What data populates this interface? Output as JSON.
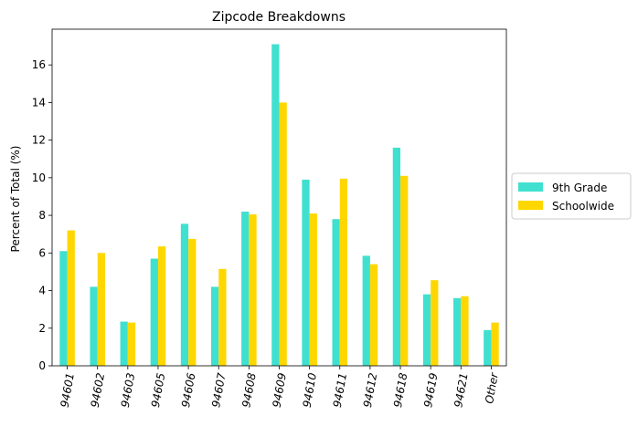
{
  "chart_data": {
    "type": "bar",
    "title": "Zipcode Breakdowns",
    "xlabel": "",
    "ylabel": "Percent of Total (%)",
    "ylim": [
      0,
      17.9
    ],
    "yticks": [
      0,
      2,
      4,
      6,
      8,
      10,
      12,
      14,
      16
    ],
    "categories": [
      "94601",
      "94602",
      "94603",
      "94605",
      "94606",
      "94607",
      "94608",
      "94609",
      "94610",
      "94611",
      "94612",
      "94618",
      "94619",
      "94621",
      "Other"
    ],
    "series": [
      {
        "name": "9th Grade",
        "color": "#40E0D0",
        "values": [
          6.1,
          4.2,
          2.35,
          5.7,
          7.55,
          4.2,
          8.2,
          17.1,
          9.9,
          7.8,
          5.85,
          11.6,
          3.8,
          3.6,
          1.9
        ]
      },
      {
        "name": "Schoolwide",
        "color": "#FFD700",
        "values": [
          7.2,
          6.0,
          2.3,
          6.35,
          6.75,
          5.15,
          8.05,
          14.0,
          8.1,
          9.95,
          5.4,
          10.1,
          4.55,
          3.7,
          2.3
        ]
      }
    ],
    "legend_position": "center-right"
  }
}
